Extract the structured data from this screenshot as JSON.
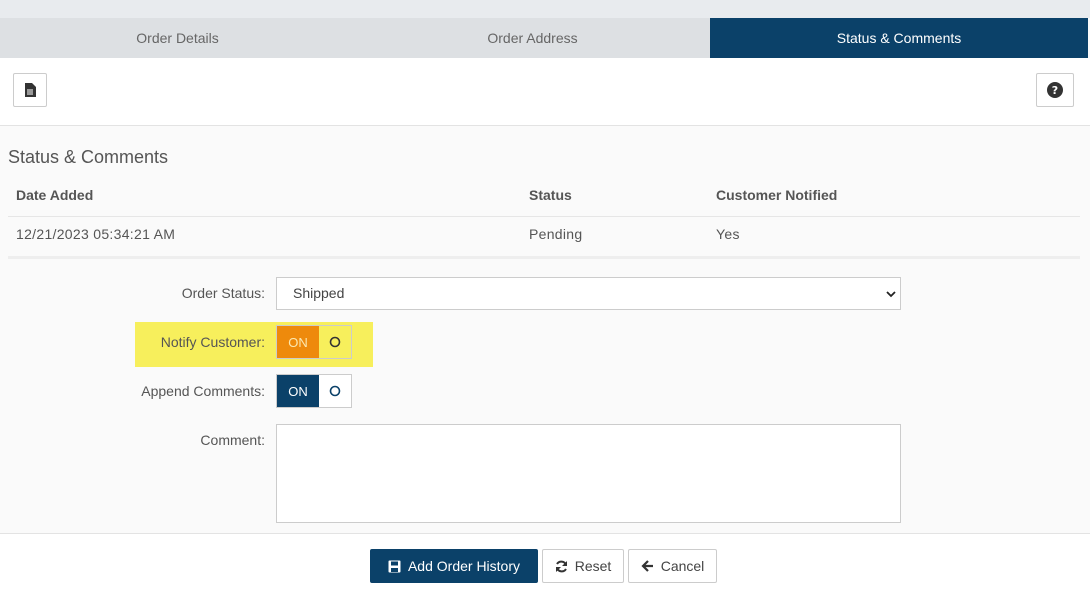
{
  "tabs": [
    "Order Details",
    "Order Address",
    "Status & Comments"
  ],
  "section_title": "Status & Comments",
  "table": {
    "headers": [
      "Date Added",
      "Status",
      "Customer Notified"
    ],
    "rows": [
      [
        "12/21/2023 05:34:21 AM",
        "Pending",
        "Yes"
      ]
    ]
  },
  "form": {
    "order_status": {
      "label": "Order Status:",
      "value": "Shipped"
    },
    "notify_customer": {
      "label": "Notify Customer:",
      "toggle": "ON"
    },
    "append_comments": {
      "label": "Append Comments:",
      "toggle": "ON"
    },
    "comment": {
      "label": "Comment:"
    }
  },
  "buttons": [
    "Add Order History",
    "Reset",
    "Cancel"
  ]
}
